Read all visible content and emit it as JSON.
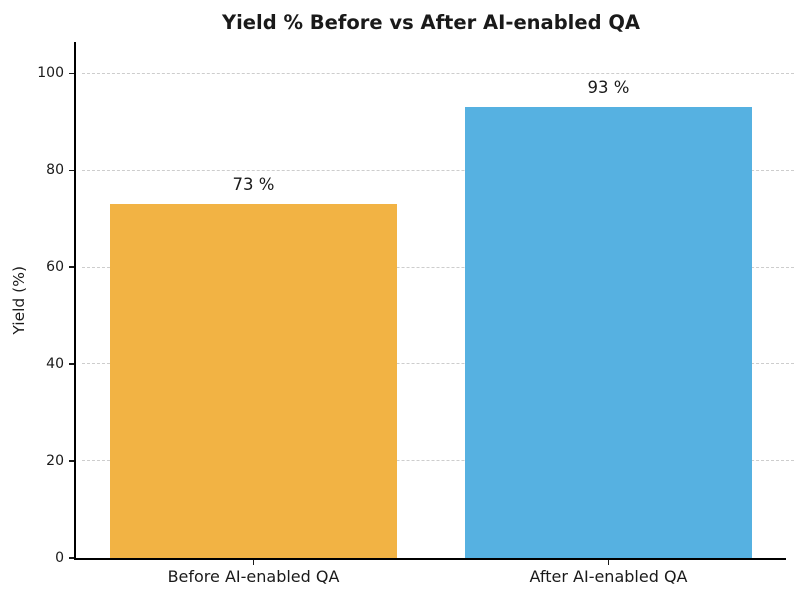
{
  "chart_data": {
    "type": "bar",
    "title": "Yield % Before vs After AI-enabled QA",
    "categories": [
      "Before AI-enabled QA",
      "After AI-enabled QA"
    ],
    "values": [
      73,
      93
    ],
    "value_labels": [
      "73 %",
      "93 %"
    ],
    "bar_colors": [
      "#F2B344",
      "#56B1E1"
    ],
    "xlabel": "",
    "ylabel": "Yield (%)",
    "ylim": [
      0,
      106.5
    ],
    "yticks": [
      0,
      20,
      40,
      60,
      80,
      100
    ],
    "grid": "horizontal dashed",
    "grid_color": "#cdcdcd",
    "spine_color": "#000000",
    "text_color": "#1a1a1a",
    "background_color": "#ffffff",
    "legend": "none"
  }
}
